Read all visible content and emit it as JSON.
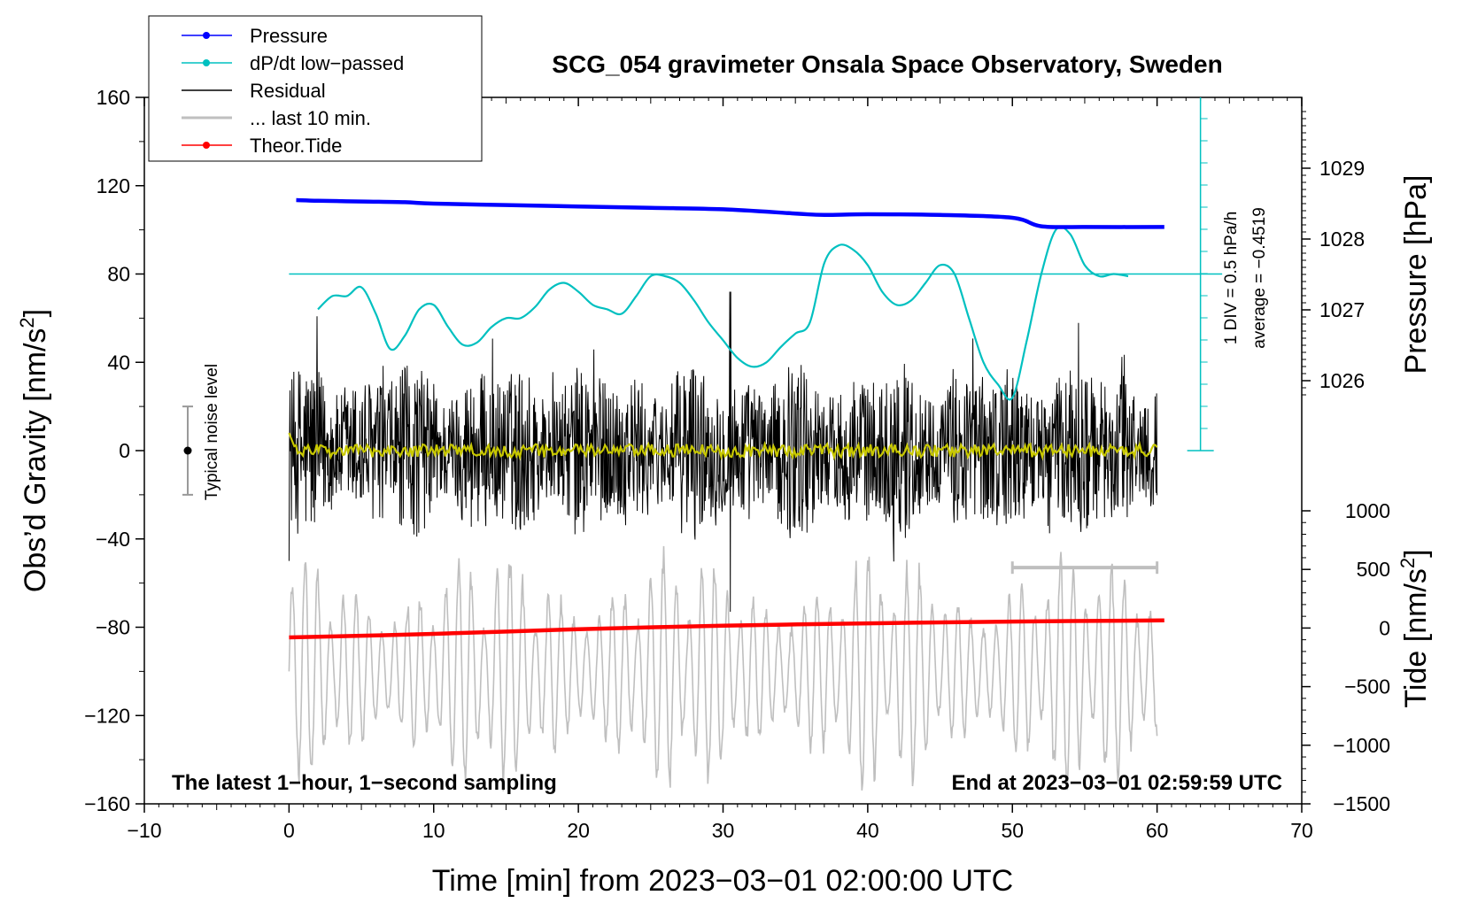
{
  "chart_data": {
    "type": "line",
    "title": "SCG_054 gravimeter Onsala Space Observatory, Sweden",
    "xlabel": "Time [min] from 2023−03−01 02:00:00 UTC",
    "ylabel_left": "Obs’d Gravity [nm/s²]",
    "ylabel_left_main": "Obs’d Gravity [nm/s",
    "ylabel_left_sup": "2",
    "ylabel_left_end": "]",
    "ylabel_right_pressure": "Pressure [hPa]",
    "ylabel_right_tide": "Tide [nm/s²]",
    "ylabel_right_tide_main": "Tide [nm/s",
    "ylabel_right_tide_sup": "2",
    "ylabel_right_tide_end": "]",
    "xlim": [
      -10,
      70
    ],
    "ylim_left": [
      -160,
      160
    ],
    "x_ticks": [
      "−10",
      "0",
      "10",
      "20",
      "30",
      "40",
      "50",
      "60",
      "70"
    ],
    "y_left_ticks": [
      "160",
      "120",
      "80",
      "40",
      "0",
      "−40",
      "−80",
      "−120",
      "−160"
    ],
    "pressure_ticks": [
      "1029",
      "1028",
      "1027",
      "1026"
    ],
    "pressure_tick_values": [
      1029,
      1028,
      1027,
      1026
    ],
    "tide_ticks": [
      "1000",
      "500",
      "0",
      "−500",
      "−1000",
      "−1500"
    ],
    "tide_tick_values": [
      1000,
      500,
      0,
      -500,
      -1000,
      -1500
    ],
    "legend": {
      "placement": "top-left",
      "entries": [
        {
          "label": "Pressure",
          "color": "#0000ff",
          "marker": true
        },
        {
          "label": "dP/dt low−passed",
          "color": "#00c0c0",
          "marker": true
        },
        {
          "label": "Residual",
          "color": "#000000",
          "marker": false
        },
        {
          "label": "... last 10 min.",
          "color": "#bfbfbf",
          "marker": false
        },
        {
          "label": "Theor.Tide",
          "color": "#ff0000",
          "marker": true
        }
      ]
    },
    "annotations": {
      "noise_label": "Typical noise level",
      "noise_range": [
        -20,
        20
      ],
      "noise_x": -7,
      "dpdt_scale": "1 DIV = 0.5 hPa/h",
      "dpdt_average": "average = −0.4519",
      "bottom_left": "The latest 1−hour, 1−second sampling",
      "bottom_right": "End at 2023−03−01 02:59:59 UTC",
      "last10_bracket_x": [
        50,
        60
      ]
    },
    "series": [
      {
        "name": "Pressure",
        "axis": "pressure_hPa",
        "color": "#0000ff",
        "x": [
          0.5,
          2,
          5,
          8,
          10,
          15,
          20,
          25,
          30,
          35,
          37,
          40,
          45,
          50,
          52,
          55,
          60.5
        ],
        "y": [
          1028.55,
          1028.54,
          1028.53,
          1028.52,
          1028.5,
          1028.48,
          1028.46,
          1028.44,
          1028.42,
          1028.36,
          1028.34,
          1028.35,
          1028.34,
          1028.3,
          1028.18,
          1028.17,
          1028.17
        ]
      },
      {
        "name": "dP/dt low−passed",
        "axis": "left_nm_s2",
        "color": "#00c0c0",
        "reference_level": 80,
        "x": [
          2,
          3,
          4,
          5,
          6,
          7,
          8,
          9,
          10,
          11,
          12,
          13,
          14,
          15,
          16,
          17,
          18,
          19,
          20,
          21,
          22,
          23,
          24,
          25,
          26,
          27,
          28,
          29,
          30,
          31,
          32,
          33,
          34,
          35,
          36,
          37,
          38,
          39,
          40,
          41,
          42,
          43,
          44,
          45,
          46,
          47,
          48,
          49,
          50,
          51,
          52,
          53,
          54,
          55,
          56,
          57,
          58
        ],
        "y": [
          64,
          70,
          70,
          74,
          62,
          46,
          52,
          64,
          66,
          56,
          48,
          49,
          56,
          60,
          60,
          65,
          73,
          76,
          72,
          66,
          64,
          62,
          70,
          79,
          79,
          76,
          68,
          58,
          50,
          42,
          38,
          40,
          47,
          53,
          58,
          85,
          93,
          91,
          84,
          72,
          66,
          68,
          76,
          84,
          80,
          60,
          40,
          30,
          24,
          50,
          80,
          100,
          98,
          84,
          79,
          80,
          79
        ]
      },
      {
        "name": "Residual",
        "axis": "left_nm_s2",
        "color": "#000000",
        "x_range": [
          0,
          60
        ],
        "typical_range": [
          -35,
          35
        ],
        "spike": {
          "x": 30.5,
          "min": -73,
          "max": 72
        }
      },
      {
        "name": "Filtered residual",
        "axis": "left_nm_s2",
        "color": "#c8c800",
        "x_range": [
          0,
          60
        ],
        "y_start": 8,
        "typical_range": [
          -3,
          3
        ]
      },
      {
        "name": "... last 10 min.",
        "axis": "left_nm_s2",
        "color": "#bfbfbf",
        "x_range": [
          0,
          60
        ],
        "center": -100,
        "typical_range": [
          -155,
          -45
        ]
      },
      {
        "name": "Theor.Tide",
        "axis": "tide_nm_s2",
        "color": "#ff0000",
        "x": [
          0,
          10,
          20,
          30,
          40,
          50,
          60.5
        ],
        "y": [
          -80,
          -50,
          -10,
          20,
          40,
          55,
          65
        ]
      }
    ]
  }
}
